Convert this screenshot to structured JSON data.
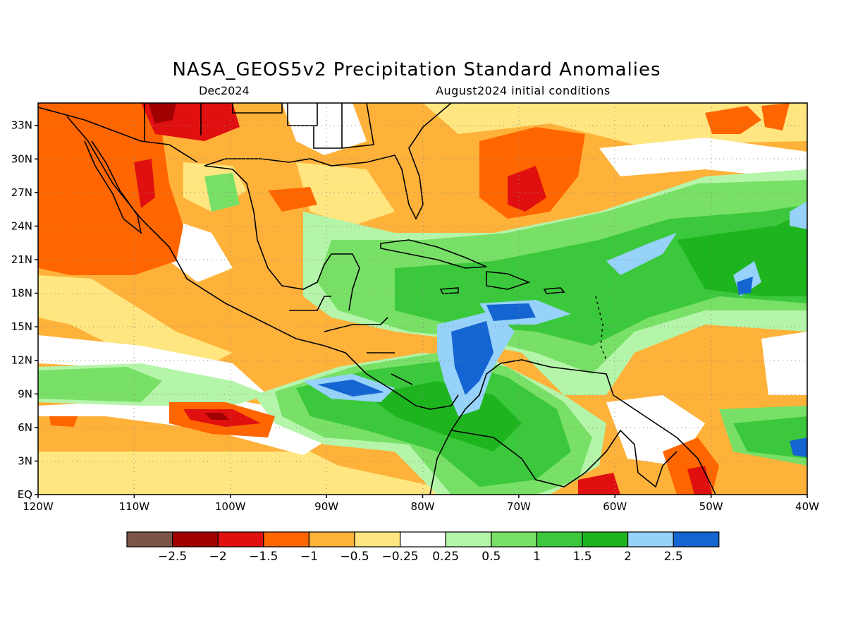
{
  "header": {
    "title": "NASA_GEOS5v2 Precipitation Standard Anomalies",
    "subtitle_left": "Dec2024",
    "subtitle_right": "August2024 initial conditions"
  },
  "map": {
    "lon_range": [
      -120,
      -40
    ],
    "lat_range": [
      0,
      35
    ],
    "x_tick_labels": [
      "120W",
      "110W",
      "100W",
      "90W",
      "80W",
      "70W",
      "60W",
      "50W",
      "40W"
    ],
    "y_tick_labels": [
      "EQ",
      "3N",
      "6N",
      "9N",
      "12N",
      "15N",
      "18N",
      "21N",
      "24N",
      "27N",
      "30N",
      "33N"
    ]
  },
  "colorbar": {
    "colors": [
      "#7a5548",
      "#a00000",
      "#e01010",
      "#ff6600",
      "#ffb23a",
      "#ffe680",
      "#ffffff",
      "#b4f5aa",
      "#78e066",
      "#3cc83c",
      "#1eb41e",
      "#96d2fa",
      "#1464d2"
    ],
    "labels": [
      "−2.5",
      "−2",
      "−1.5",
      "−1",
      "−0.5",
      "−0.25",
      "0.25",
      "0.5",
      "1",
      "1.5",
      "2",
      "2.5"
    ]
  }
}
